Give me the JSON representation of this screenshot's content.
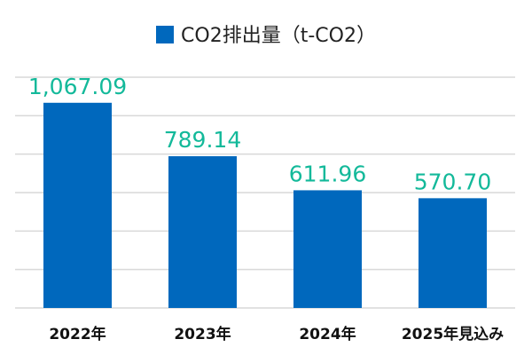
{
  "chart_data": {
    "type": "bar",
    "categories": [
      "2022年",
      "2023年",
      "2024年",
      "2025年見込み"
    ],
    "series": [
      {
        "name": "CO2排出量（t-CO2）",
        "values": [
          1067.09,
          789.14,
          611.96,
          570.7
        ]
      }
    ],
    "data_labels": [
      "1,067.09",
      "789.14",
      "611.96",
      "570.70"
    ],
    "ylim": [
      0,
      1200
    ],
    "ytick_step": 200,
    "yaxis_labels_visible": false,
    "grid": true,
    "legend_position": "top",
    "colors": {
      "bar": "#0068BD",
      "data_label": "#13B99A",
      "grid": "#D9D9D9"
    }
  }
}
